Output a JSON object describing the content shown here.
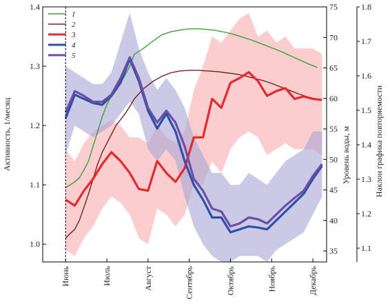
{
  "chart_data": {
    "type": "line",
    "left_axis": {
      "label": "Активность, 1/месяц",
      "ticks": [
        1.0,
        1.1,
        1.2,
        1.3,
        1.4
      ],
      "range": [
        0.97,
        1.4
      ]
    },
    "right_axis_1": {
      "label": "Уровень воды, м",
      "ticks": [
        35,
        40,
        45,
        50,
        55,
        60,
        65,
        70,
        75
      ],
      "range": [
        33.2,
        75
      ]
    },
    "right_axis_2": {
      "label": "Наклон графика повторяемости",
      "ticks": [
        1.1,
        1.2,
        1.3,
        1.4,
        1.5,
        1.6,
        1.7,
        1.8
      ],
      "range": [
        1.06,
        1.8
      ]
    },
    "x_range": [
      0,
      31
    ],
    "x_categories": [
      {
        "label": "Июнь",
        "x": 2.5
      },
      {
        "label": "Июль",
        "x": 7
      },
      {
        "label": "Август",
        "x": 11.5
      },
      {
        "label": "Сентябрь",
        "x": 16
      },
      {
        "label": "Октябрь",
        "x": 20.5
      },
      {
        "label": "Ноябрь",
        "x": 25
      },
      {
        "label": "Декабрь",
        "x": 29.5
      }
    ],
    "dashed_vline_x": 2.5,
    "legend": [
      "1",
      "2",
      "3",
      "4",
      "5"
    ],
    "series": [
      {
        "name": "1",
        "color": "#3a9e3a",
        "axis": "left",
        "width": 1.4,
        "x": [
          2.5,
          3,
          3.5,
          4,
          4.5,
          5,
          5.5,
          6,
          6.5,
          7,
          7.5,
          8,
          8.5,
          9,
          9.5,
          10,
          11,
          12,
          13,
          14,
          15,
          16,
          17,
          18,
          19,
          20,
          21,
          22,
          23,
          24,
          25,
          26,
          27,
          28,
          29,
          30
        ],
        "y": [
          1.095,
          1.1,
          1.105,
          1.112,
          1.125,
          1.14,
          1.165,
          1.19,
          1.215,
          1.235,
          1.25,
          1.26,
          1.272,
          1.285,
          1.3,
          1.32,
          1.33,
          1.342,
          1.353,
          1.358,
          1.361,
          1.363,
          1.363,
          1.362,
          1.36,
          1.357,
          1.353,
          1.348,
          1.343,
          1.337,
          1.331,
          1.325,
          1.318,
          1.311,
          1.304,
          1.298
        ]
      },
      {
        "name": "2",
        "color": "#7a1e1e",
        "axis": "left",
        "width": 1.4,
        "x": [
          2.5,
          3,
          3.5,
          4,
          4.5,
          5,
          5.5,
          6,
          6.5,
          7,
          7.5,
          8,
          8.5,
          9,
          9.5,
          10,
          11,
          12,
          13,
          14,
          15,
          16,
          17,
          18,
          19,
          20,
          21,
          22,
          23,
          24,
          25,
          26,
          27,
          28,
          29,
          30
        ],
        "y": [
          1.01,
          1.018,
          1.025,
          1.04,
          1.062,
          1.085,
          1.11,
          1.135,
          1.155,
          1.17,
          1.185,
          1.2,
          1.21,
          1.22,
          1.232,
          1.245,
          1.262,
          1.274,
          1.283,
          1.289,
          1.292,
          1.293,
          1.293,
          1.292,
          1.291,
          1.289,
          1.287,
          1.284,
          1.28,
          1.276,
          1.271,
          1.265,
          1.259,
          1.253,
          1.248,
          1.244
        ]
      },
      {
        "name": "3",
        "color": "#e8262b",
        "axis": "left",
        "width": 3.2,
        "x": [
          2.5,
          3.5,
          4.5,
          5.5,
          6.5,
          7.5,
          8.5,
          9.5,
          10.5,
          11.5,
          12.5,
          13.5,
          14.5,
          15.5,
          16.5,
          17.5,
          18.5,
          19.5,
          20.5,
          21.5,
          22.5,
          23.5,
          24.5,
          25.5,
          26.5,
          27.5,
          28.5,
          29.5,
          30.5
        ],
        "y": [
          1.075,
          1.065,
          1.09,
          1.11,
          1.135,
          1.155,
          1.14,
          1.12,
          1.093,
          1.09,
          1.14,
          1.12,
          1.105,
          1.128,
          1.18,
          1.18,
          1.245,
          1.23,
          1.272,
          1.28,
          1.29,
          1.275,
          1.25,
          1.258,
          1.263,
          1.245,
          1.249,
          1.245,
          1.243
        ]
      },
      {
        "name": "4",
        "color": "#2e4fa8",
        "axis": "left",
        "width": 3.2,
        "x": [
          2.5,
          3.5,
          4.5,
          5.5,
          6.5,
          7.5,
          8.5,
          9.5,
          10.5,
          11.5,
          12.5,
          13.5,
          14.5,
          15.5,
          16.5,
          17.5,
          18.5,
          19.5,
          20.5,
          21.5,
          22.5,
          23.5,
          24.5,
          25.5,
          26.5,
          27.5,
          28.5,
          29.5,
          30.5
        ],
        "y": [
          1.212,
          1.252,
          1.245,
          1.238,
          1.235,
          1.25,
          1.272,
          1.312,
          1.275,
          1.225,
          1.195,
          1.22,
          1.19,
          1.14,
          1.1,
          1.075,
          1.045,
          1.045,
          1.02,
          1.025,
          1.03,
          1.028,
          1.025,
          1.04,
          1.055,
          1.07,
          1.085,
          1.11,
          1.132
        ]
      },
      {
        "name": "5",
        "color": "#6b4fa5",
        "axis": "left",
        "width": 3.2,
        "x": [
          2.5,
          3.5,
          4.5,
          5.5,
          6.5,
          7.5,
          8.5,
          9.5,
          10.5,
          11.5,
          12.5,
          13.5,
          14.5,
          15.5,
          16.5,
          17.5,
          18.5,
          19.5,
          20.5,
          21.5,
          22.5,
          23.5,
          24.5,
          25.5,
          26.5,
          27.5,
          28.5,
          29.5,
          30.5
        ],
        "y": [
          1.222,
          1.258,
          1.25,
          1.24,
          1.24,
          1.252,
          1.28,
          1.315,
          1.28,
          1.23,
          1.205,
          1.225,
          1.205,
          1.165,
          1.11,
          1.09,
          1.06,
          1.055,
          1.03,
          1.035,
          1.045,
          1.042,
          1.035,
          1.05,
          1.065,
          1.078,
          1.09,
          1.115,
          1.135
        ]
      }
    ],
    "bands": [
      {
        "color": "#f5a6a6",
        "opacity": 0.55,
        "x": [
          2.5,
          3.5,
          4.5,
          5.5,
          6.5,
          7.5,
          8.5,
          9.5,
          10.5,
          11.5,
          12.5,
          13.5,
          14.5,
          15.5,
          16.5,
          17.5,
          18.5,
          19.5,
          20.5,
          21.5,
          22.5,
          23.5,
          24.5,
          25.5,
          26.5,
          27.5,
          28.5,
          29.5,
          30.5
        ],
        "upper": [
          1.16,
          1.14,
          1.17,
          1.19,
          1.2,
          1.21,
          1.2,
          1.18,
          1.18,
          1.17,
          1.2,
          1.18,
          1.17,
          1.19,
          1.26,
          1.3,
          1.35,
          1.34,
          1.36,
          1.38,
          1.39,
          1.35,
          1.36,
          1.34,
          1.35,
          1.33,
          1.33,
          1.33,
          1.32
        ],
        "lower": [
          0.99,
          0.98,
          1.01,
          1.03,
          1.06,
          1.08,
          1.07,
          1.05,
          1.01,
          1.0,
          1.06,
          1.05,
          1.03,
          1.05,
          1.1,
          1.1,
          1.14,
          1.12,
          1.16,
          1.18,
          1.19,
          1.18,
          1.15,
          1.16,
          1.17,
          1.16,
          1.16,
          1.16,
          1.15
        ]
      },
      {
        "color": "#a9a6d6",
        "opacity": 0.6,
        "x": [
          2.5,
          3.5,
          4.5,
          5.5,
          6.5,
          7.5,
          8.5,
          9.5,
          10.5,
          11.5,
          12.5,
          13.5,
          14.5,
          15.5,
          16.5,
          17.5,
          18.5,
          19.5,
          20.5,
          21.5,
          22.5,
          23.5,
          24.5,
          25.5,
          26.5,
          27.5,
          28.5,
          29.5,
          30.5
        ],
        "upper": [
          1.3,
          1.29,
          1.28,
          1.27,
          1.27,
          1.29,
          1.34,
          1.39,
          1.33,
          1.29,
          1.26,
          1.28,
          1.26,
          1.23,
          1.18,
          1.15,
          1.12,
          1.12,
          1.1,
          1.1,
          1.12,
          1.11,
          1.1,
          1.12,
          1.14,
          1.15,
          1.16,
          1.19,
          1.19
        ],
        "lower": [
          1.15,
          1.2,
          1.19,
          1.18,
          1.19,
          1.2,
          1.22,
          1.24,
          1.22,
          1.16,
          1.14,
          1.16,
          1.14,
          1.08,
          1.03,
          1.0,
          0.98,
          0.97,
          0.97,
          0.98,
          0.98,
          0.98,
          0.97,
          0.99,
          1.0,
          1.01,
          1.02,
          1.05,
          1.08
        ]
      }
    ]
  }
}
